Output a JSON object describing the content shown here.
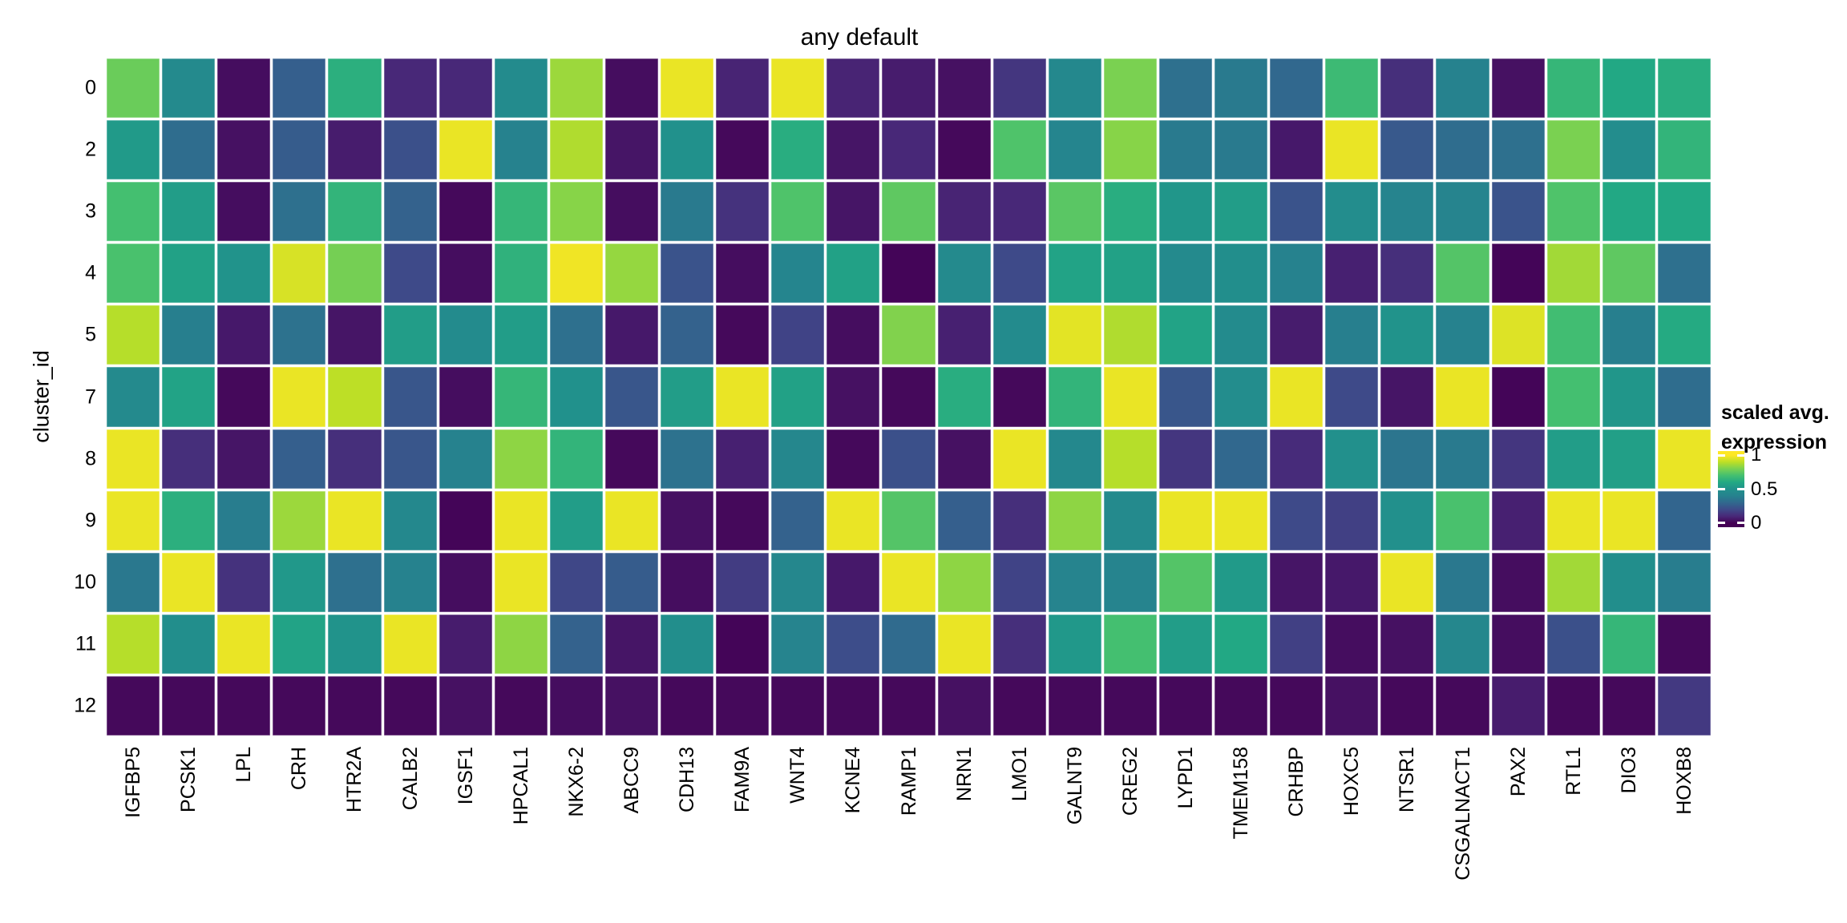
{
  "chart_data": {
    "type": "heatmap",
    "title": "any default",
    "ylabel": "cluster_id",
    "x_categories": [
      "IGFBP5",
      "PCSK1",
      "LPL",
      "CRH",
      "HTR2A",
      "CALB2",
      "IGSF1",
      "HPCAL1",
      "NKX6-2",
      "ABCC9",
      "CDH13",
      "FAM9A",
      "WNT4",
      "KCNE4",
      "RAMP1",
      "NRN1",
      "LMO1",
      "GALNT9",
      "CREG2",
      "LYPD1",
      "TMEM158",
      "CRHBP",
      "HOXC5",
      "NTSR1",
      "CSGALNACT1",
      "PAX2",
      "RTL1",
      "DIO3",
      "HOXB8"
    ],
    "y_categories": [
      "0",
      "2",
      "3",
      "4",
      "5",
      "7",
      "8",
      "9",
      "10",
      "11",
      "12"
    ],
    "values": [
      [
        0.77,
        0.45,
        0.03,
        0.27,
        0.63,
        0.1,
        0.1,
        0.46,
        0.85,
        0.03,
        0.97,
        0.09,
        0.97,
        0.09,
        0.07,
        0.04,
        0.14,
        0.44,
        0.8,
        0.33,
        0.37,
        0.3,
        0.68,
        0.12,
        0.4,
        0.04,
        0.66,
        0.6,
        0.62
      ],
      [
        0.54,
        0.32,
        0.04,
        0.26,
        0.07,
        0.22,
        0.97,
        0.4,
        0.88,
        0.05,
        0.5,
        0.02,
        0.62,
        0.05,
        0.1,
        0.02,
        0.72,
        0.42,
        0.82,
        0.37,
        0.37,
        0.06,
        0.97,
        0.25,
        0.32,
        0.33,
        0.8,
        0.47,
        0.65
      ],
      [
        0.7,
        0.55,
        0.03,
        0.33,
        0.65,
        0.28,
        0.02,
        0.66,
        0.82,
        0.03,
        0.37,
        0.13,
        0.72,
        0.05,
        0.75,
        0.09,
        0.1,
        0.74,
        0.62,
        0.52,
        0.55,
        0.23,
        0.47,
        0.41,
        0.41,
        0.23,
        0.72,
        0.6,
        0.6
      ],
      [
        0.71,
        0.57,
        0.51,
        0.94,
        0.79,
        0.2,
        0.03,
        0.64,
        0.98,
        0.84,
        0.23,
        0.03,
        0.42,
        0.57,
        0.01,
        0.45,
        0.2,
        0.58,
        0.57,
        0.45,
        0.48,
        0.4,
        0.08,
        0.12,
        0.73,
        0.01,
        0.86,
        0.75,
        0.33
      ],
      [
        0.89,
        0.39,
        0.06,
        0.34,
        0.05,
        0.55,
        0.46,
        0.55,
        0.33,
        0.06,
        0.28,
        0.02,
        0.18,
        0.03,
        0.81,
        0.08,
        0.46,
        0.96,
        0.88,
        0.58,
        0.46,
        0.07,
        0.39,
        0.51,
        0.4,
        0.95,
        0.69,
        0.39,
        0.61
      ],
      [
        0.45,
        0.58,
        0.02,
        0.97,
        0.9,
        0.24,
        0.03,
        0.66,
        0.5,
        0.24,
        0.55,
        0.97,
        0.57,
        0.04,
        0.02,
        0.62,
        0.02,
        0.65,
        0.97,
        0.24,
        0.47,
        0.97,
        0.2,
        0.05,
        0.97,
        0.01,
        0.7,
        0.52,
        0.32
      ],
      [
        0.97,
        0.12,
        0.05,
        0.27,
        0.12,
        0.24,
        0.4,
        0.83,
        0.65,
        0.02,
        0.34,
        0.08,
        0.43,
        0.02,
        0.22,
        0.04,
        0.97,
        0.44,
        0.89,
        0.14,
        0.3,
        0.11,
        0.49,
        0.35,
        0.37,
        0.14,
        0.55,
        0.56,
        0.97
      ],
      [
        0.97,
        0.63,
        0.38,
        0.85,
        0.97,
        0.44,
        0.01,
        0.97,
        0.55,
        0.97,
        0.04,
        0.02,
        0.28,
        0.97,
        0.73,
        0.27,
        0.12,
        0.83,
        0.45,
        0.97,
        0.97,
        0.2,
        0.17,
        0.49,
        0.71,
        0.08,
        0.97,
        0.97,
        0.29
      ],
      [
        0.36,
        0.97,
        0.13,
        0.53,
        0.33,
        0.4,
        0.03,
        0.97,
        0.19,
        0.26,
        0.03,
        0.16,
        0.43,
        0.06,
        0.97,
        0.83,
        0.18,
        0.41,
        0.41,
        0.73,
        0.54,
        0.05,
        0.06,
        0.97,
        0.36,
        0.03,
        0.86,
        0.48,
        0.38
      ],
      [
        0.89,
        0.48,
        0.97,
        0.58,
        0.51,
        0.97,
        0.07,
        0.83,
        0.28,
        0.05,
        0.48,
        0.01,
        0.41,
        0.21,
        0.31,
        0.97,
        0.12,
        0.53,
        0.7,
        0.55,
        0.6,
        0.17,
        0.03,
        0.04,
        0.43,
        0.03,
        0.22,
        0.66,
        0.02
      ],
      [
        0.02,
        0.02,
        0.02,
        0.02,
        0.02,
        0.02,
        0.04,
        0.02,
        0.03,
        0.04,
        0.02,
        0.02,
        0.02,
        0.02,
        0.02,
        0.04,
        0.02,
        0.02,
        0.02,
        0.02,
        0.02,
        0.02,
        0.04,
        0.02,
        0.02,
        0.07,
        0.02,
        0.02,
        0.15
      ]
    ],
    "value_range": [
      0,
      1
    ],
    "grid_line_color": "#ffffff",
    "colormap": "viridis",
    "colormap_stops": [
      "#440154",
      "#482878",
      "#3e4a89",
      "#31688e",
      "#26828e",
      "#21918c",
      "#22a884",
      "#44bf70",
      "#7ad151",
      "#bddf26",
      "#fde725"
    ],
    "legend": {
      "title_line1": "scaled avg.",
      "title_line2": "expression",
      "position": "right",
      "ticks": [
        {
          "label": "1",
          "value": 1
        },
        {
          "label": "0.5",
          "value": 0.5
        },
        {
          "label": "0",
          "value": 0
        }
      ]
    }
  }
}
